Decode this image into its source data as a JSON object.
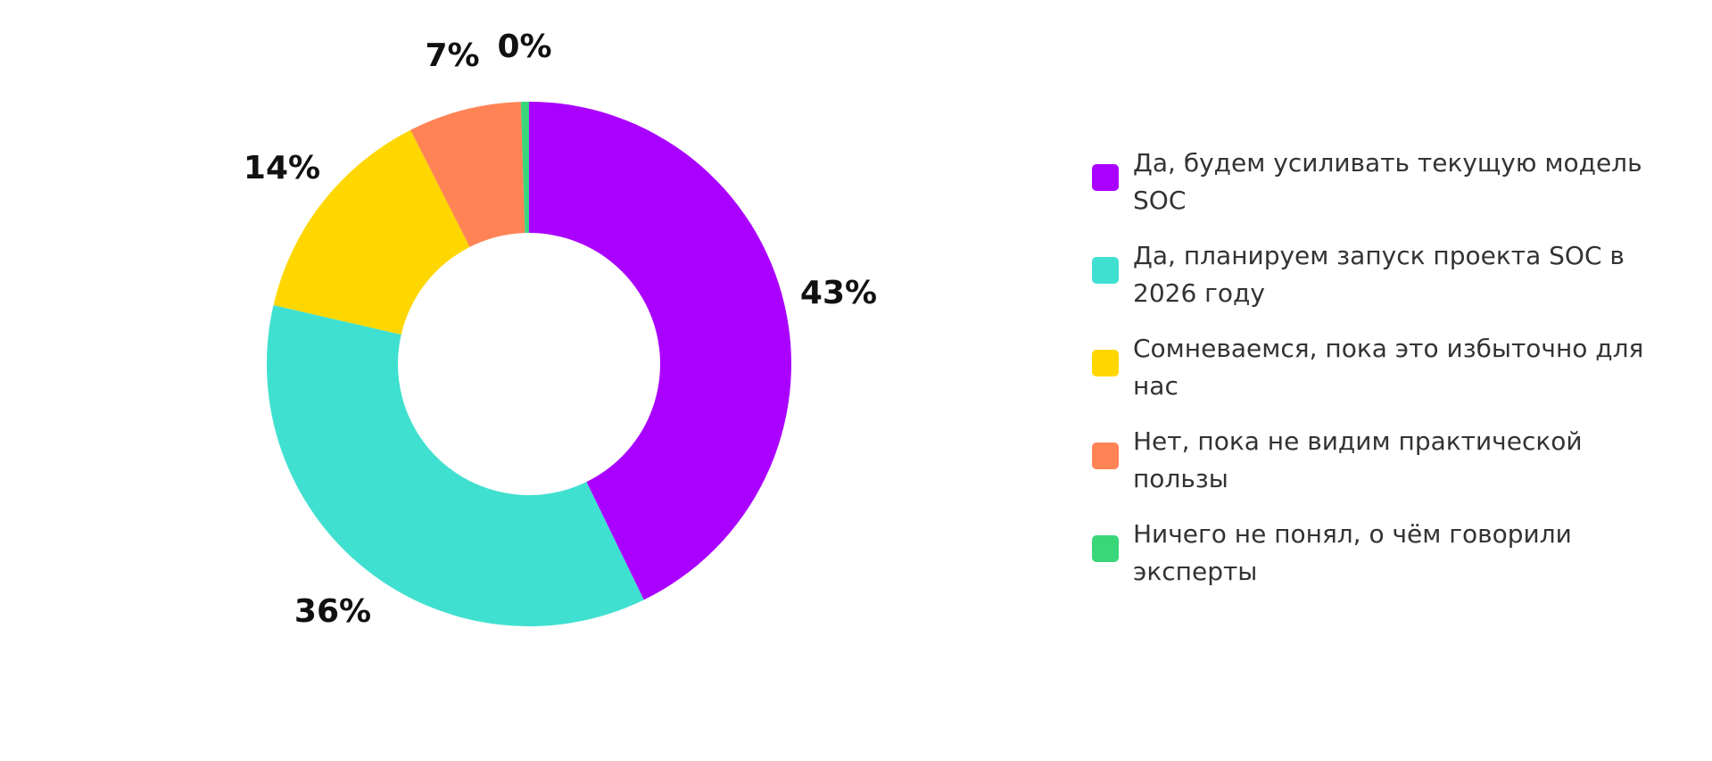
{
  "chart_data": {
    "type": "pie",
    "categories": [
      "Да, будем усиливать текущую модель SOC",
      "Да, планируем запуск проекта SOC в 2026 году",
      "Сомневаемся, пока это избыточно для нас",
      "Нет, пока не видим практической пользы",
      "Ничего не понял, о чём говорили эксперты"
    ],
    "values": [
      43,
      36,
      14,
      7,
      0.5
    ],
    "value_labels": [
      "43%",
      "36%",
      "14%",
      "7%",
      "0%"
    ],
    "colors": [
      "#AA00FF",
      "#40E0D0",
      "#FFD700",
      "#FF8355",
      "#3AD67A"
    ],
    "donut": true,
    "legend_position": "right"
  }
}
